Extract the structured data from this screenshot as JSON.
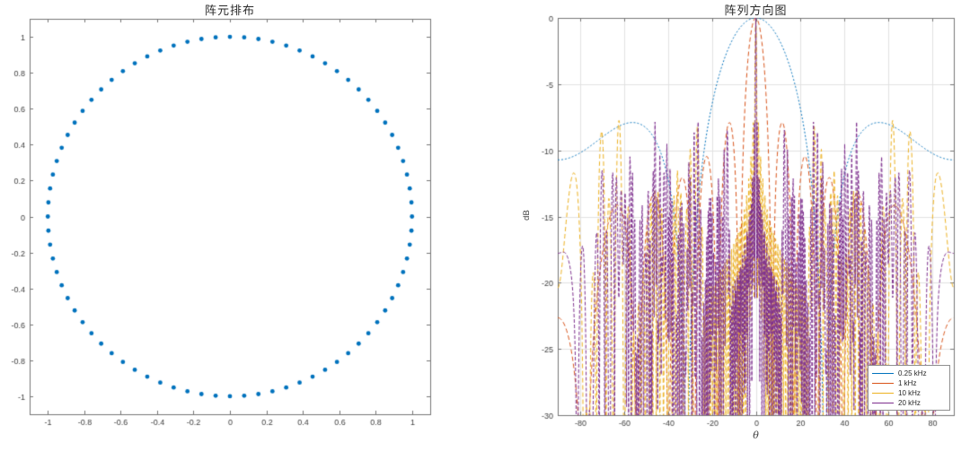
{
  "figure": {
    "background": "#ffffff"
  },
  "chart_data": [
    {
      "type": "scatter",
      "title": "阵元排布",
      "xlabel": "",
      "ylabel": "",
      "xlim": [
        -1.1,
        1.1
      ],
      "ylim": [
        -1.1,
        1.1
      ],
      "xticks": [
        -1,
        -0.8,
        -0.6,
        -0.4,
        -0.2,
        0,
        0.2,
        0.4,
        0.6,
        0.8,
        1
      ],
      "xtick_labels": [
        "-1",
        "-0.8",
        "-0.6",
        "-0.4",
        "-0.2",
        "0",
        "0.2",
        "0.4",
        "0.6",
        "0.8",
        "1"
      ],
      "yticks": [
        1,
        0.8,
        0.6,
        0.4,
        0.2,
        0,
        -0.2,
        -0.4,
        -0.6,
        -0.8,
        -1
      ],
      "ytick_labels": [
        "1",
        "0.8",
        "0.6",
        "0.4",
        "0.2",
        "0",
        "-0.2",
        "-0.4",
        "-0.6",
        "-0.8",
        "-1"
      ],
      "grid": false,
      "axis_color": "#767676",
      "tick_label_color": "#404040",
      "marker": {
        "shape": "filled-circle",
        "color": "#0072BD",
        "radius_px": 2.4
      },
      "points_generator": {
        "model": "uniform_circular_array_layout",
        "num_elements": 80,
        "radius": 1.0,
        "start_angle_deg": 0,
        "angular_step_deg": 4.5
      }
    },
    {
      "type": "line",
      "title": "阵列方向图",
      "xlabel": "θ",
      "ylabel": "dB",
      "xlim": [
        -90,
        90
      ],
      "ylim": [
        -30,
        0
      ],
      "xticks": [
        -80,
        -60,
        -40,
        -20,
        0,
        20,
        40,
        60,
        80
      ],
      "xtick_labels": [
        "-80",
        "-60",
        "-40",
        "-20",
        "0",
        "20",
        "40",
        "60",
        "80"
      ],
      "yticks": [
        0,
        -5,
        -10,
        -15,
        -20,
        -25,
        -30
      ],
      "ytick_labels": [
        "0",
        "-5",
        "-10",
        "-15",
        "-20",
        "-25",
        "-30"
      ],
      "grid": true,
      "grid_color": "#e2e2e2",
      "axis_color": "#767676",
      "tick_label_color": "#404040",
      "legend": {
        "position": "southeast",
        "border_color": "#8f8f8f",
        "entries": [
          {
            "label": "0.25 kHz",
            "color": "#0072BD"
          },
          {
            "label": "1 kHz",
            "color": "#D95319"
          },
          {
            "label": "10 kHz",
            "color": "#EDB120"
          },
          {
            "label": "20 kHz",
            "color": "#7E2F8E"
          }
        ]
      },
      "series": [
        {
          "name": "0.25 kHz",
          "freq_hz": 250,
          "color": "#0072BD",
          "dash": [
            2,
            2
          ]
        },
        {
          "name": "1 kHz",
          "freq_hz": 1000,
          "color": "#D95319",
          "dash": [
            5,
            3
          ]
        },
        {
          "name": "10 kHz",
          "freq_hz": 10000,
          "color": "#EDB120",
          "dash": [
            5,
            3
          ]
        },
        {
          "name": "20 kHz",
          "freq_hz": 20000,
          "color": "#7E2F8E",
          "dash": [
            4,
            2
          ]
        }
      ],
      "curve_generator": {
        "model": "uniform_circular_array_axial_beampattern",
        "formula": "B(theta)=20*log10(|(1/N)*sum_n exp(j*k*r*sin(theta)*cos(2*pi*n/N))|)",
        "num_elements": 80,
        "radius_m": 1.0,
        "speed_of_sound_mps": 340,
        "theta_range_deg": [
          -90,
          90
        ],
        "theta_step_deg": 0.2
      }
    }
  ]
}
